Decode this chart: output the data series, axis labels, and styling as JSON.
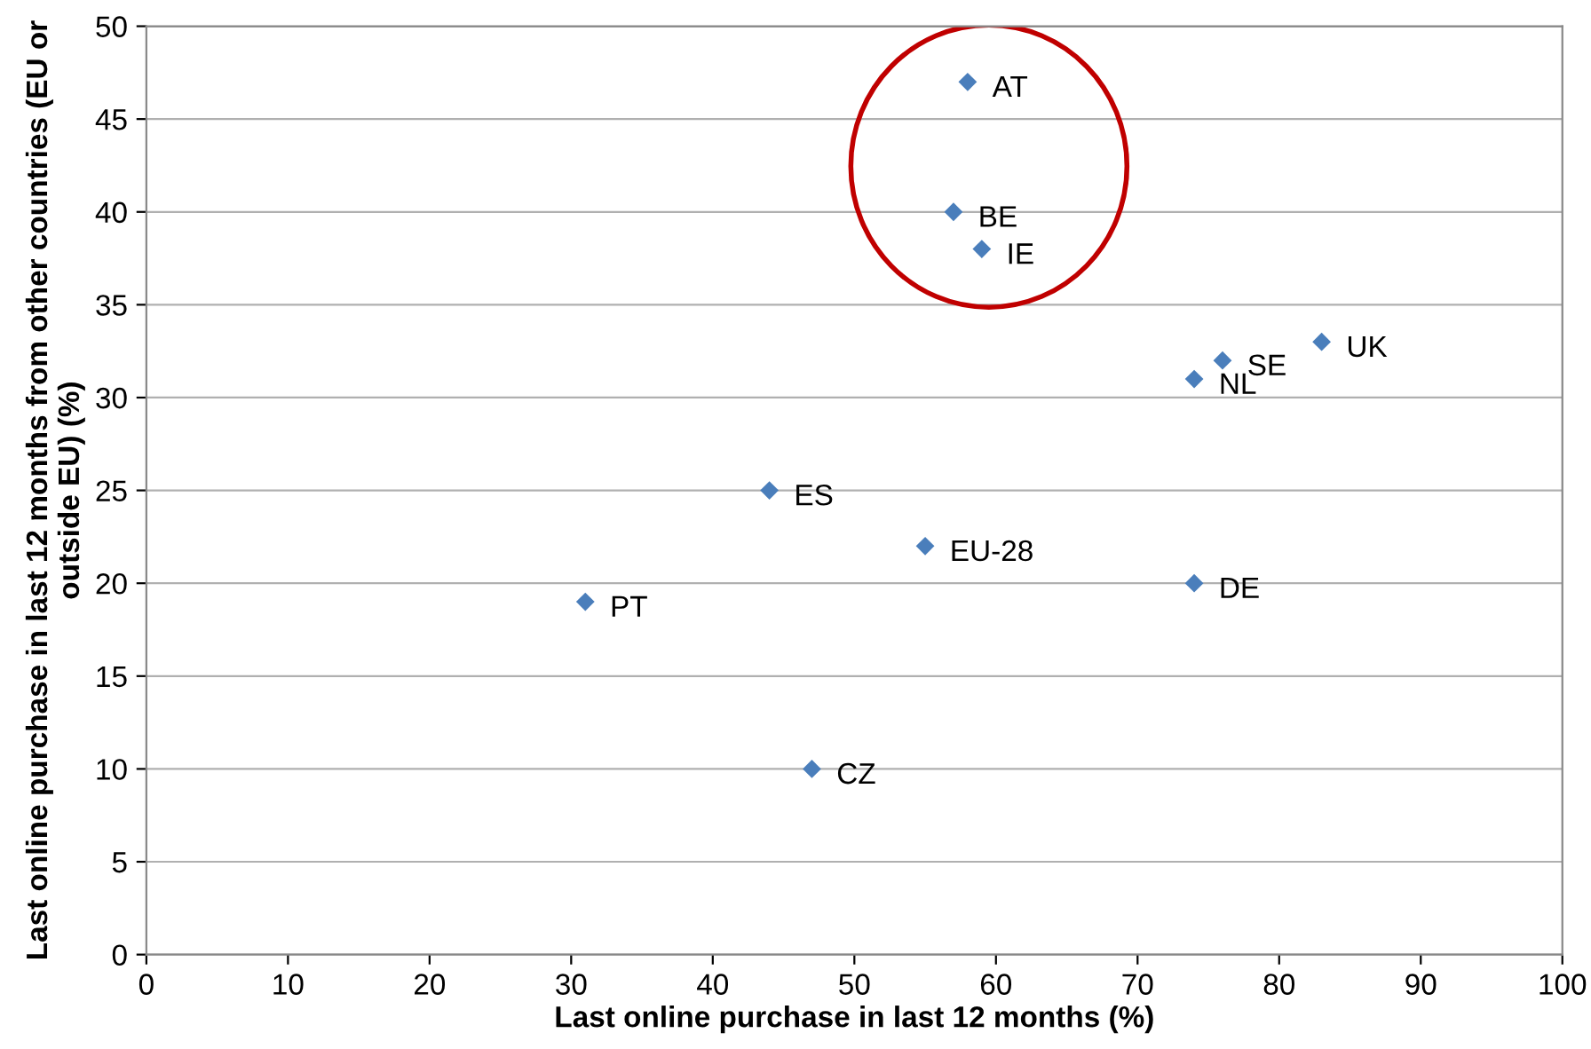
{
  "chart_data": {
    "type": "scatter",
    "xlabel": "Last online purchase in last 12 months (%)",
    "ylabel": "Last online purchase in last 12 months from other countries (EU or outside EU) (%)",
    "x": [
      58,
      57,
      59,
      83,
      76,
      74,
      44,
      55,
      74,
      31,
      47
    ],
    "series": [
      {
        "color": "#4a7ebb",
        "values": [
          47,
          40,
          38,
          33,
          32,
          31,
          25,
          22,
          20,
          19,
          10
        ]
      }
    ],
    "annotations": [
      {
        "text": "AT",
        "x": 58,
        "y": 47
      },
      {
        "text": "BE",
        "x": 57,
        "y": 40
      },
      {
        "text": "IE",
        "x": 59,
        "y": 38
      },
      {
        "text": "UK",
        "x": 83,
        "y": 33
      },
      {
        "text": "SE",
        "x": 76,
        "y": 32
      },
      {
        "text": "NL",
        "x": 74,
        "y": 31
      },
      {
        "text": "ES",
        "x": 44,
        "y": 25
      },
      {
        "text": "EU-28",
        "x": 55,
        "y": 22
      },
      {
        "text": "DE",
        "x": 74,
        "y": 20
      },
      {
        "text": "PT",
        "x": 31,
        "y": 19
      },
      {
        "text": "CZ",
        "x": 47,
        "y": 10
      }
    ],
    "xlim": [
      0,
      100
    ],
    "xticks": [
      0,
      10,
      20,
      30,
      40,
      50,
      60,
      70,
      80,
      90,
      100
    ],
    "ylim": [
      0,
      50
    ],
    "yticks": [
      0,
      5,
      10,
      15,
      20,
      25,
      30,
      35,
      40,
      45,
      50
    ],
    "grid": "y",
    "marker": "diamond"
  }
}
